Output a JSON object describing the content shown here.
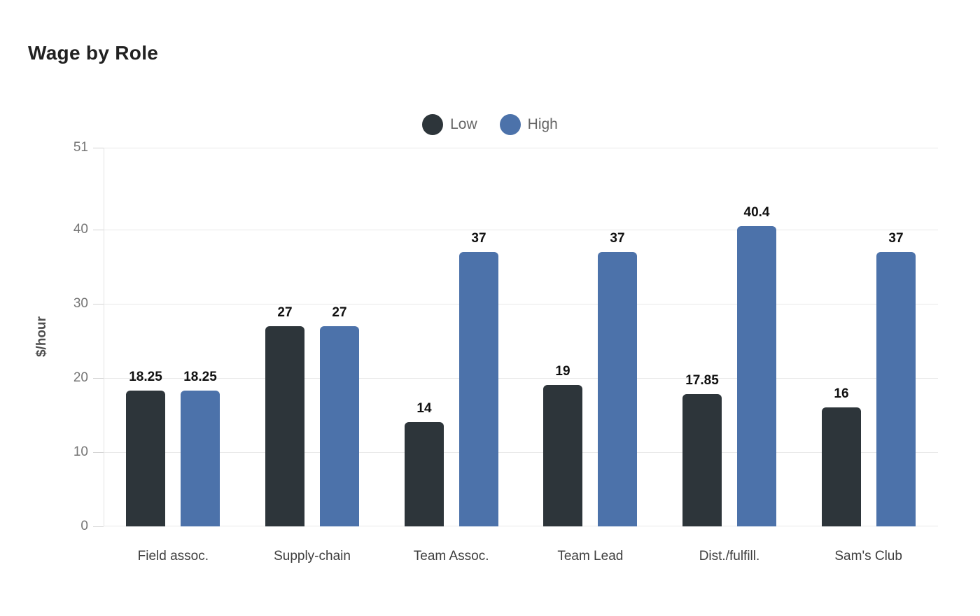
{
  "page": {
    "background": "#ffffff"
  },
  "chart_data": {
    "type": "bar",
    "title": "Wage by Role",
    "categories": [
      "Field assoc.",
      "Supply-chain",
      "Team Assoc.",
      "Team Lead",
      "Dist./fulfill.",
      "Sam's Club"
    ],
    "series": [
      {
        "name": "Low",
        "color": "#2d353a",
        "values": [
          18.25,
          27,
          14,
          19,
          17.85,
          16
        ]
      },
      {
        "name": "High",
        "color": "#4c72aa",
        "values": [
          18.25,
          27,
          37,
          37,
          40.4,
          37
        ]
      }
    ],
    "xlabel": "",
    "ylabel": "$/hour",
    "ylim": [
      0,
      51
    ],
    "yticks": [
      0,
      10,
      20,
      30,
      40,
      51
    ],
    "grid": true,
    "legend_position": "top-center",
    "data_labels": true,
    "value_label_texts": {
      "Low": [
        "18.25",
        "27",
        "14",
        "19",
        "17.85",
        "16"
      ],
      "High": [
        "18.25",
        "27",
        "37",
        "37",
        "40.4",
        "37"
      ]
    }
  },
  "colors": {
    "gridline": "#e8e8e8",
    "axis_line": "#e4e4e4",
    "tick_mark": "#d2d2d2",
    "tick_text": "#757575",
    "category_text": "#3e3e3e",
    "legend_text": "#666666",
    "value_label_text": "#101010",
    "title_text": "#212121"
  }
}
